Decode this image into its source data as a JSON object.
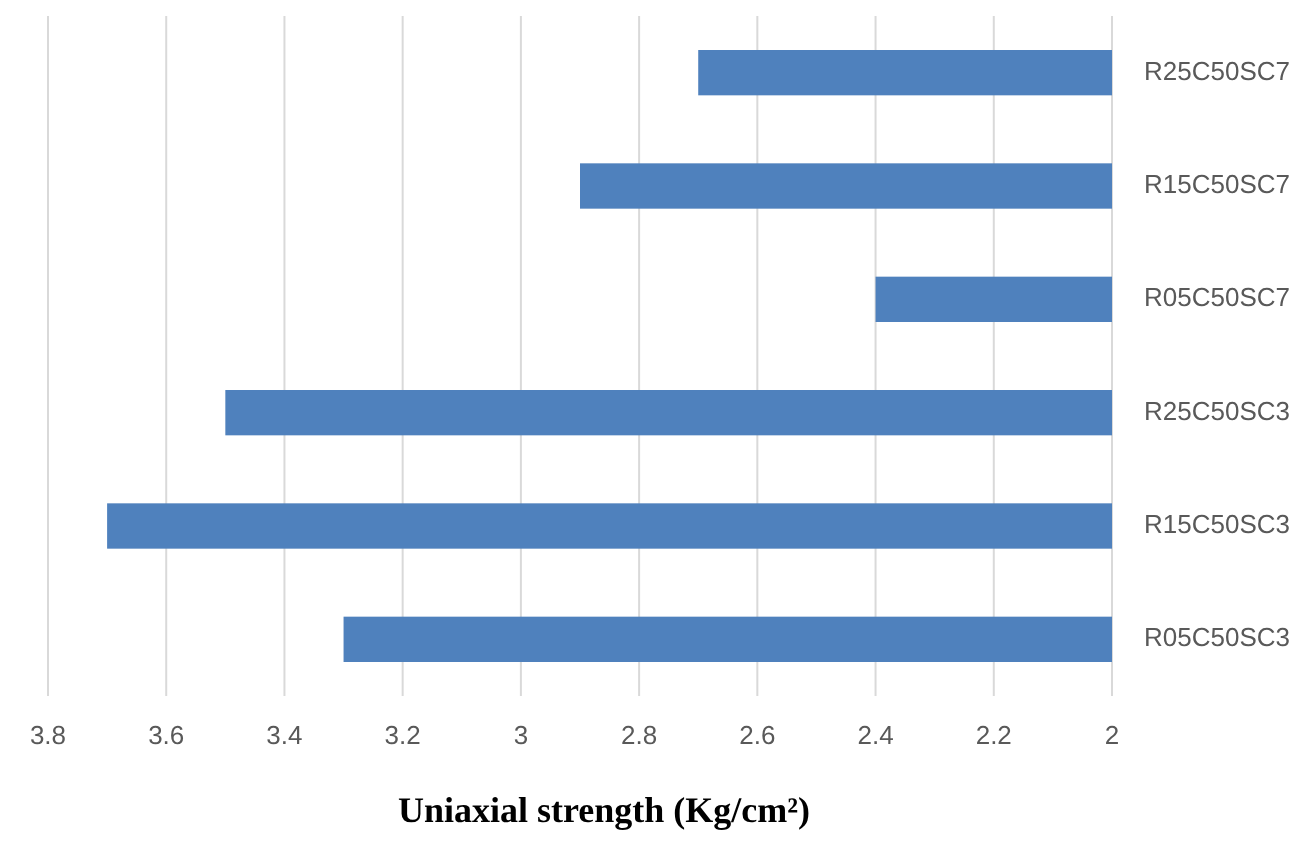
{
  "chart_data": {
    "type": "bar",
    "orientation": "horizontal",
    "xlabel": "Uniaxial strength (Kg/cm²)",
    "categories": [
      "R25C50SC7",
      "R15C50SC7",
      "R05C50SC7",
      "R25C50SC3",
      "R15C50SC3",
      "R05C50SC3"
    ],
    "values": [
      2.7,
      2.9,
      2.4,
      3.5,
      3.7,
      3.3
    ],
    "color": "#4f81bd",
    "xlim": [
      3.8,
      2
    ],
    "xticks": [
      3.8,
      3.6,
      3.4,
      3.2,
      3,
      2.8,
      2.6,
      2.4,
      2.2,
      2
    ],
    "grid": "x"
  }
}
